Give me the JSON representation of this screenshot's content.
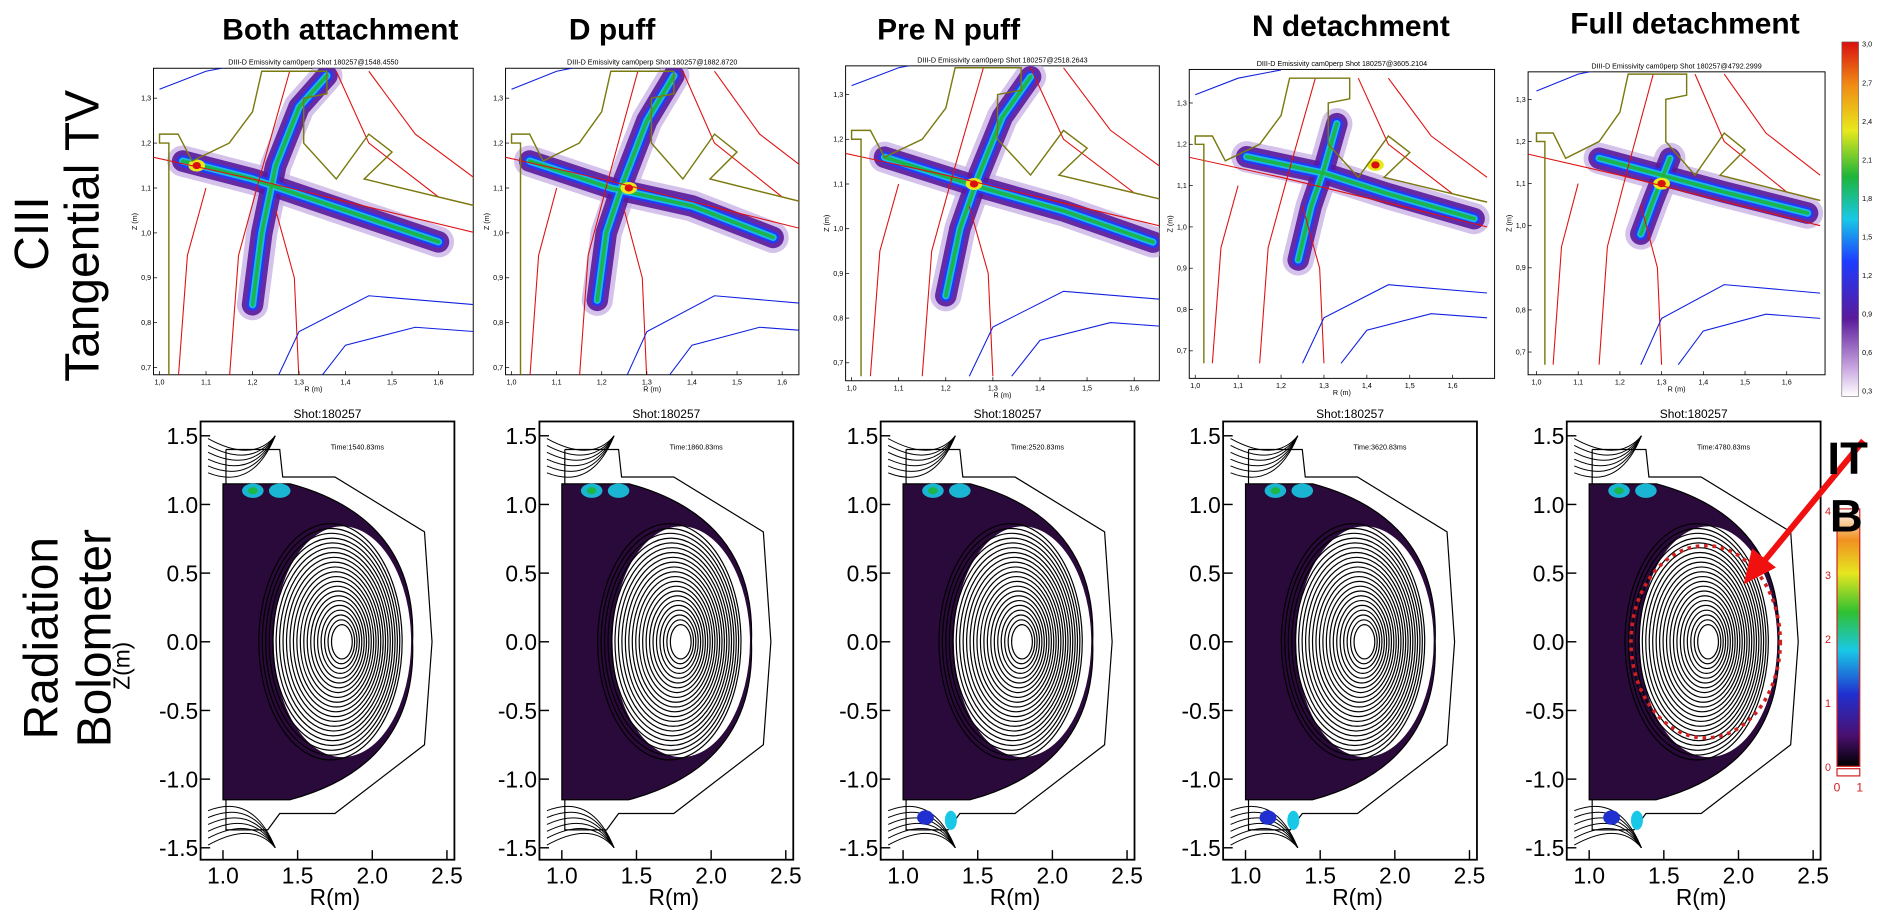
{
  "columns": [
    "Both attachment",
    "D puff",
    "Pre N puff",
    "N detachment",
    "Full detachment"
  ],
  "rows": [
    [
      "CIII",
      "Tangential TV"
    ],
    [
      "Radiation",
      "Bolometer"
    ]
  ],
  "top_panels": {
    "titles": [
      "DIII-D Emissivity cam0perp Shot 180257@1548.4550",
      "DIII-D Emissivity cam0perp Shot 180257@1882.8720",
      "DIII-D Emissivity cam0perp Shot 180257@2518.2643",
      "DIII-D Emissivity cam0perp Shot 180257@3605.2104",
      "DIII-D Emissivity cam0perp Shot 180257@4792.2999"
    ],
    "xticks": [
      "1,0",
      "1,1",
      "1,2",
      "1,3",
      "1,4",
      "1,5",
      "1,6"
    ],
    "yticks": [
      "1,3",
      "1,2",
      "1,1",
      "1,0",
      "0,9",
      "0,8",
      "0,7"
    ],
    "xlabel": "R (m)",
    "ylabel": "Z (m)"
  },
  "bottom_panels": {
    "shot": "Shot:180257",
    "times": [
      "Time:1540.83ms",
      "Time:1860.83ms",
      "Time:2520.83ms",
      "Time:3620.83ms",
      "Time:4780.83ms"
    ],
    "xticks": [
      "1.0",
      "1.5",
      "2.0",
      "2.5"
    ],
    "yticks": [
      "1.5",
      "1.0",
      "0.5",
      "0.0",
      "-0.5",
      "-1.0",
      "-1.5"
    ],
    "xlabel": "R(m)",
    "ylabel": "Z(m)"
  },
  "top_colorbar": {
    "ticks": [
      "3,0",
      "2,7",
      "2,4",
      "2,1",
      "1,8",
      "1,5",
      "1,2",
      "0,9",
      "0,6",
      "0,3"
    ]
  },
  "bottom_colorbar": {
    "ticks": [
      "4",
      "3",
      "2",
      "1",
      "0"
    ],
    "range_labels": [
      "0",
      "1"
    ]
  },
  "annotation": [
    "IT",
    "B"
  ]
}
